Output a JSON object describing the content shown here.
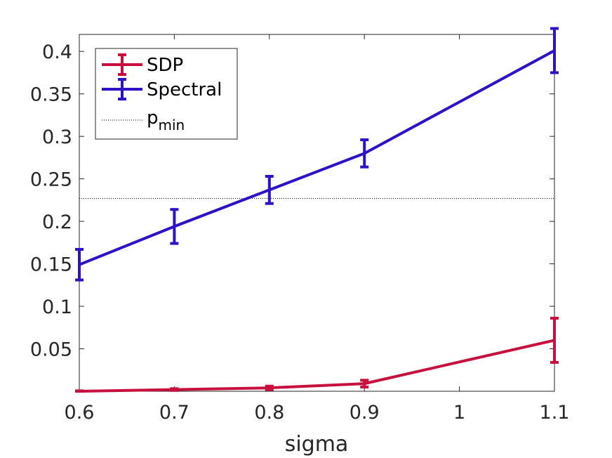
{
  "chart_data": {
    "type": "line",
    "xlabel": "sigma",
    "ylabel": "",
    "title": "",
    "xlim": [
      0.6,
      1.1
    ],
    "ylim": [
      0,
      0.42
    ],
    "xticks": [
      "0.6",
      "0.7",
      "0.8",
      "0.9",
      "1",
      "1.1"
    ],
    "yticks": [
      "0.05",
      "0.1",
      "0.15",
      "0.2",
      "0.25",
      "0.3",
      "0.35",
      "0.4"
    ],
    "x": [
      0.6,
      0.7,
      0.8,
      0.9,
      1.1
    ],
    "grid": false,
    "legend_position": "top-left",
    "series": [
      {
        "name": "SDP",
        "color": "#c8103e",
        "values": [
          0.0,
          0.002,
          0.004,
          0.009,
          0.06
        ],
        "errors": [
          0.0005,
          0.001,
          0.002,
          0.004,
          0.026
        ]
      },
      {
        "name": "Spectral",
        "color": "#2f12c8",
        "values": [
          0.149,
          0.194,
          0.237,
          0.28,
          0.401
        ],
        "errors": [
          0.018,
          0.02,
          0.016,
          0.016,
          0.026
        ]
      }
    ],
    "reference_line": {
      "name": "p",
      "subscript": "min",
      "value": 0.227,
      "style": "dotted",
      "color": "#000000"
    }
  }
}
